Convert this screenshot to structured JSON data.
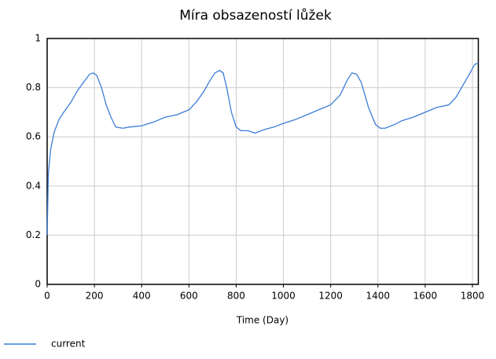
{
  "chart_data": {
    "type": "line",
    "title": "Míra obsazeností lůžek",
    "x_label": "Time (Day)",
    "x": [
      0,
      5,
      15,
      30,
      50,
      70,
      100,
      130,
      160,
      180,
      195,
      210,
      230,
      250,
      270,
      290,
      320,
      350,
      400,
      450,
      500,
      550,
      600,
      630,
      660,
      690,
      710,
      730,
      745,
      760,
      780,
      800,
      820,
      850,
      880,
      920,
      960,
      1000,
      1050,
      1100,
      1150,
      1200,
      1240,
      1270,
      1290,
      1310,
      1330,
      1360,
      1390,
      1410,
      1430,
      1470,
      1500,
      1550,
      1600,
      1650,
      1700,
      1730,
      1760,
      1790,
      1810,
      1825
    ],
    "series": [
      {
        "name": "current",
        "color": "#3b7dd8",
        "values": [
          0.2,
          0.45,
          0.55,
          0.62,
          0.67,
          0.7,
          0.74,
          0.79,
          0.83,
          0.855,
          0.86,
          0.85,
          0.8,
          0.73,
          0.68,
          0.64,
          0.635,
          0.64,
          0.645,
          0.66,
          0.68,
          0.69,
          0.71,
          0.74,
          0.78,
          0.83,
          0.86,
          0.87,
          0.86,
          0.8,
          0.7,
          0.64,
          0.625,
          0.625,
          0.615,
          0.63,
          0.64,
          0.655,
          0.67,
          0.69,
          0.71,
          0.73,
          0.77,
          0.83,
          0.86,
          0.855,
          0.82,
          0.72,
          0.65,
          0.635,
          0.635,
          0.65,
          0.665,
          0.68,
          0.7,
          0.72,
          0.73,
          0.76,
          0.81,
          0.86,
          0.895,
          0.9
        ]
      }
    ],
    "xlim": [
      0,
      1825
    ],
    "ylim": [
      0,
      1
    ],
    "xticks": [
      0,
      200,
      400,
      600,
      800,
      1000,
      1200,
      1400,
      1600,
      1800
    ],
    "yticks": [
      0,
      0.2,
      0.4,
      0.6,
      0.8,
      1
    ],
    "grid": true
  }
}
